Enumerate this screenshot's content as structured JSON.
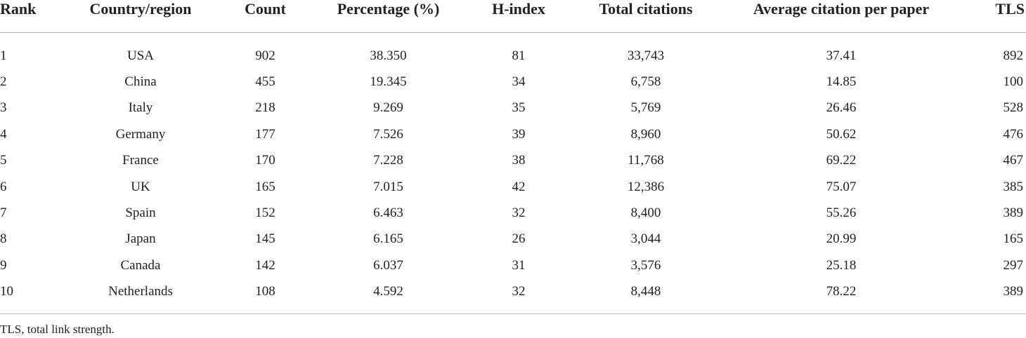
{
  "table": {
    "columns": [
      "Rank",
      "Country/region",
      "Count",
      "Percentage (%)",
      "H-index",
      "Total citations",
      "Average citation per paper",
      "TLS"
    ],
    "rows": [
      [
        "1",
        "USA",
        "902",
        "38.350",
        "81",
        "33,743",
        "37.41",
        "892"
      ],
      [
        "2",
        "China",
        "455",
        "19.345",
        "34",
        "6,758",
        "14.85",
        "100"
      ],
      [
        "3",
        "Italy",
        "218",
        "9.269",
        "35",
        "5,769",
        "26.46",
        "528"
      ],
      [
        "4",
        "Germany",
        "177",
        "7.526",
        "39",
        "8,960",
        "50.62",
        "476"
      ],
      [
        "5",
        "France",
        "170",
        "7.228",
        "38",
        "11,768",
        "69.22",
        "467"
      ],
      [
        "6",
        "UK",
        "165",
        "7.015",
        "42",
        "12,386",
        "75.07",
        "385"
      ],
      [
        "7",
        "Spain",
        "152",
        "6.463",
        "32",
        "8,400",
        "55.26",
        "389"
      ],
      [
        "8",
        "Japan",
        "145",
        "6.165",
        "26",
        "3,044",
        "20.99",
        "165"
      ],
      [
        "9",
        "Canada",
        "142",
        "6.037",
        "31",
        "3,576",
        "25.18",
        "297"
      ],
      [
        "10",
        "Netherlands",
        "108",
        "4.592",
        "32",
        "8,448",
        "78.22",
        "389"
      ]
    ]
  },
  "footnote": "TLS, total link strength."
}
